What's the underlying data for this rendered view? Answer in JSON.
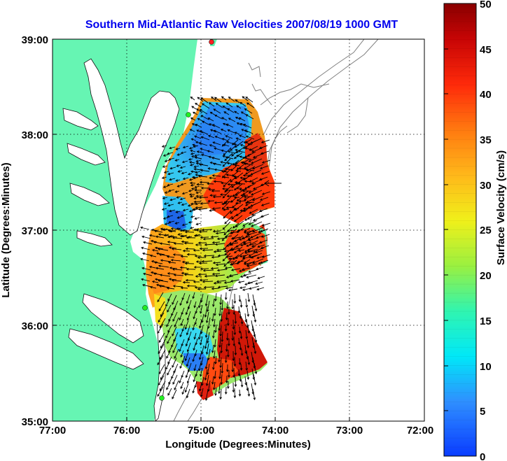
{
  "title": "Southern Mid-Atlantic Raw Velocities 2007/08/19 1000 GMT",
  "x_axis": {
    "label": "Longitude (Degrees:Minutes)",
    "ticks": [
      "77:00",
      "76:00",
      "75:00",
      "74:00",
      "73:00",
      "72:00"
    ]
  },
  "y_axis": {
    "label": "Latitude (Degrees:Minutes)",
    "ticks": [
      "39:00",
      "38:00",
      "37:00",
      "36:00",
      "35:00"
    ]
  },
  "colorbar": {
    "label": "Surface Velocity (cm/s)",
    "ticks": [
      "0",
      "5",
      "10",
      "15",
      "20",
      "25",
      "30",
      "35",
      "40",
      "45",
      "50"
    ],
    "min": 0,
    "max": 50
  },
  "map": {
    "lon_range": [
      -77,
      -72
    ],
    "lat_range": [
      35,
      39
    ],
    "land_color": "#66f5b3",
    "bathymetry_color": "#808080",
    "grid": "dotted"
  }
}
